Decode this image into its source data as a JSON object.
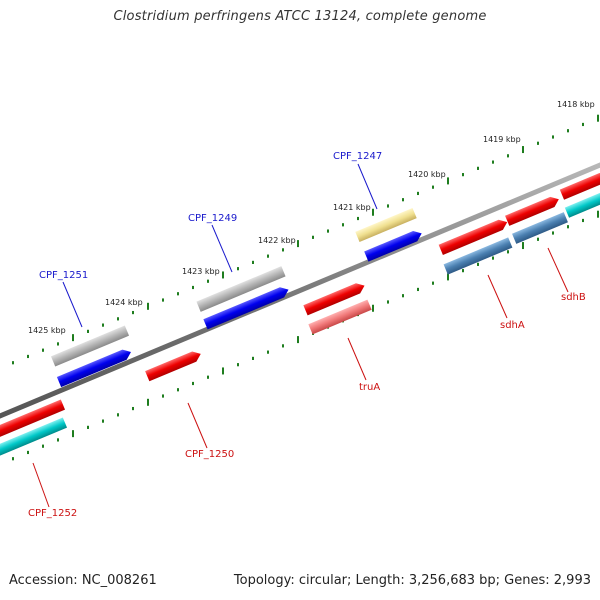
{
  "header": {
    "title": "Clostridium perfringens ATCC 13124, complete genome"
  },
  "footer": {
    "accession": "Accession: NC_008261",
    "summary": "Topology: circular; Length: 3,256,683 bp; Genes: 2,993"
  },
  "scale_labels": [
    "1418 kbp",
    "1419 kbp",
    "1420 kbp",
    "1421 kbp",
    "1422 kbp",
    "1423 kbp",
    "1424 kbp",
    "1425 kbp"
  ],
  "gene_labels": [
    "CPF_1247",
    "CPF_1249",
    "CPF_1251",
    "CPF_1250",
    "CPF_1252",
    "truA",
    "sdhA",
    "sdhB"
  ],
  "colors": {
    "backbone": "#808080",
    "tick": "#1e7d1e",
    "label_blue": "#1a1acc",
    "label_red": "#cc1111",
    "gene_red": "#ee0000",
    "gene_blue": "#0000ee",
    "gene_cyan": "#00c0c0",
    "gene_gray": "#b0b0b0",
    "gene_yellow": "#f0e090",
    "gene_pink": "#f07878",
    "gene_steel": "#4a7fb0"
  }
}
